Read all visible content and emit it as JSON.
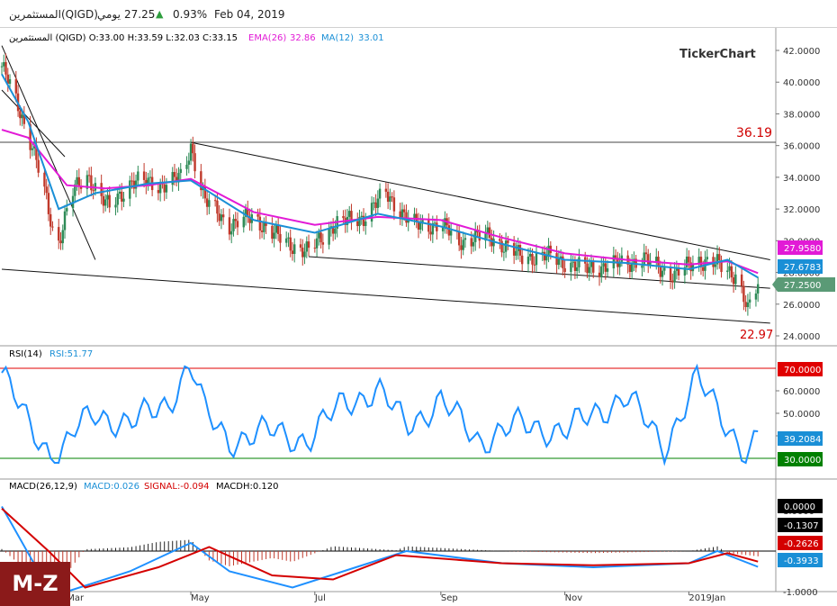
{
  "header": {
    "name": "المستثمرين",
    "symbol": "(QIGD)",
    "period": "يومي",
    "last_price": "27.25",
    "change_pct": "0.93%",
    "date": "Feb 04, 2019"
  },
  "price_panel": {
    "legend_ohlc": "المستثمرين (QIGD) O:33.00 H:33.59 L:32.03 C:33.15",
    "ema_label": "EMA(26)",
    "ema_value": "32.86",
    "ma_label": "MA(12)",
    "ma_value": "33.01",
    "watermark": "TickerChart",
    "y_ticks": [
      "42.0000",
      "40.0000",
      "38.0000",
      "36.0000",
      "34.0000",
      "32.0000",
      "30.0000",
      "28.0000",
      "26.0000",
      "24.0000"
    ],
    "marker_high": "36.19",
    "marker_low": "22.97",
    "tag_ema": "27.9580",
    "tag_ma": "27.6783",
    "tag_close": "27.2500"
  },
  "rsi_panel": {
    "label": "RSI(14)",
    "value_label": "RSI:51.77",
    "y_ticks": [
      "60.0000",
      "50.0000",
      "40.0000"
    ],
    "upper_level": "70.0000",
    "lower_level": "30.0000",
    "current": "39.2084"
  },
  "macd_panel": {
    "label": "MACD(26,12,9)",
    "macd_label": "MACD:0.026",
    "signal_label": "SIGNAL:-0.094",
    "macdh_label": "MACDH:0.120",
    "y_ticks": [
      "1.0000",
      "-1.0000"
    ],
    "tag_zero": "0.0000",
    "tag_hist": "-0.1307",
    "tag_signal": "-0.2626",
    "tag_macd": "-0.3933"
  },
  "x_axis_labels": [
    "Mar",
    "May",
    "Jul",
    "Sep",
    "Nov",
    "2019Jan"
  ],
  "badge": "M-Z",
  "colors": {
    "up": "#2e8b57",
    "down": "#c0392b",
    "ema": "#e21ad6",
    "ma": "#1a8fd6",
    "rsi": "#1e90ff",
    "macd": "#1e90ff",
    "signal": "#d40000",
    "level_high": "#e00000",
    "level_low": "#008000"
  },
  "chart_data": {
    "type": "candlestick",
    "symbol": "QIGD",
    "x_range": [
      "2018-01-28",
      "2019-02-04"
    ],
    "price_ylim": [
      24,
      42
    ],
    "price_points": [
      {
        "d": "2018-01-28",
        "c": 41.0
      },
      {
        "d": "2018-02-05",
        "c": 38.5
      },
      {
        "d": "2018-02-12",
        "c": 36.0
      },
      {
        "d": "2018-02-18",
        "c": 33.0
      },
      {
        "d": "2018-02-24",
        "c": 29.5
      },
      {
        "d": "2018-03-03",
        "c": 33.0
      },
      {
        "d": "2018-03-12",
        "c": 34.0
      },
      {
        "d": "2018-03-22",
        "c": 32.0
      },
      {
        "d": "2018-04-02",
        "c": 33.8
      },
      {
        "d": "2018-04-15",
        "c": 33.5
      },
      {
        "d": "2018-04-27",
        "c": 34.0
      },
      {
        "d": "2018-05-01",
        "c": 36.0
      },
      {
        "d": "2018-05-08",
        "c": 32.5
      },
      {
        "d": "2018-05-20",
        "c": 31.0
      },
      {
        "d": "2018-06-01",
        "c": 31.5
      },
      {
        "d": "2018-06-15",
        "c": 30.0
      },
      {
        "d": "2018-06-28",
        "c": 29.3
      },
      {
        "d": "2018-07-10",
        "c": 31.0
      },
      {
        "d": "2018-07-25",
        "c": 31.5
      },
      {
        "d": "2018-08-05",
        "c": 33.0
      },
      {
        "d": "2018-08-18",
        "c": 31.0
      },
      {
        "d": "2018-09-01",
        "c": 31.0
      },
      {
        "d": "2018-09-10",
        "c": 30.0
      },
      {
        "d": "2018-09-25",
        "c": 30.3
      },
      {
        "d": "2018-10-10",
        "c": 29.0
      },
      {
        "d": "2018-10-25",
        "c": 29.0
      },
      {
        "d": "2018-11-10",
        "c": 28.2
      },
      {
        "d": "2018-11-25",
        "c": 28.5
      },
      {
        "d": "2018-12-10",
        "c": 28.8
      },
      {
        "d": "2018-12-25",
        "c": 27.8
      },
      {
        "d": "2019-01-05",
        "c": 28.8
      },
      {
        "d": "2019-01-15",
        "c": 28.5
      },
      {
        "d": "2019-01-25",
        "c": 27.8
      },
      {
        "d": "2019-01-30",
        "c": 25.5
      },
      {
        "d": "2019-02-04",
        "c": 27.25
      }
    ],
    "ema26_points": [
      {
        "d": "2018-01-28",
        "v": 37.0
      },
      {
        "d": "2018-02-10",
        "v": 36.5
      },
      {
        "d": "2018-03-01",
        "v": 33.5
      },
      {
        "d": "2018-03-20",
        "v": 33.3
      },
      {
        "d": "2018-04-10",
        "v": 33.5
      },
      {
        "d": "2018-05-01",
        "v": 33.9
      },
      {
        "d": "2018-06-01",
        "v": 31.8
      },
      {
        "d": "2018-07-01",
        "v": 31.0
      },
      {
        "d": "2018-08-01",
        "v": 31.5
      },
      {
        "d": "2018-09-01",
        "v": 31.3
      },
      {
        "d": "2018-10-01",
        "v": 30.2
      },
      {
        "d": "2018-11-01",
        "v": 29.2
      },
      {
        "d": "2018-12-01",
        "v": 28.8
      },
      {
        "d": "2019-01-01",
        "v": 28.5
      },
      {
        "d": "2019-01-20",
        "v": 28.7
      },
      {
        "d": "2019-02-04",
        "v": 27.958
      }
    ],
    "ma12_points": [
      {
        "d": "2018-01-28",
        "v": 40.5
      },
      {
        "d": "2018-02-10",
        "v": 37.5
      },
      {
        "d": "2018-02-25",
        "v": 32.0
      },
      {
        "d": "2018-03-15",
        "v": 33.0
      },
      {
        "d": "2018-04-10",
        "v": 33.6
      },
      {
        "d": "2018-05-01",
        "v": 33.8
      },
      {
        "d": "2018-06-01",
        "v": 31.3
      },
      {
        "d": "2018-07-01",
        "v": 30.5
      },
      {
        "d": "2018-08-01",
        "v": 31.7
      },
      {
        "d": "2018-09-01",
        "v": 30.9
      },
      {
        "d": "2018-10-01",
        "v": 29.8
      },
      {
        "d": "2018-11-01",
        "v": 28.8
      },
      {
        "d": "2018-12-01",
        "v": 28.6
      },
      {
        "d": "2019-01-01",
        "v": 28.2
      },
      {
        "d": "2019-01-20",
        "v": 28.8
      },
      {
        "d": "2019-02-04",
        "v": 27.678
      }
    ],
    "horizontal_level": 36.19,
    "low_marker": 22.97,
    "trendlines": [
      {
        "from": {
          "d": "2018-01-28",
          "v": 42.3
        },
        "to": {
          "d": "2018-03-15",
          "v": 28.8
        }
      },
      {
        "from": {
          "d": "2018-01-28",
          "v": 39.5
        },
        "to": {
          "d": "2018-02-28",
          "v": 35.3
        }
      },
      {
        "from": {
          "d": "2018-05-01",
          "v": 36.2
        },
        "to": {
          "d": "2019-02-10",
          "v": 28.8
        }
      },
      {
        "from": {
          "d": "2018-06-28",
          "v": 29.0
        },
        "to": {
          "d": "2019-02-10",
          "v": 27.0
        }
      },
      {
        "from": {
          "d": "2018-01-28",
          "v": 28.2
        },
        "to": {
          "d": "2019-02-10",
          "v": 24.8
        }
      }
    ],
    "rsi_ylim": [
      27,
      73
    ],
    "rsi_levels": [
      70,
      30
    ],
    "rsi_points": [
      {
        "d": "2018-01-28",
        "v": 68
      },
      {
        "d": "2018-02-10",
        "v": 45
      },
      {
        "d": "2018-02-24",
        "v": 29
      },
      {
        "d": "2018-03-05",
        "v": 42
      },
      {
        "d": "2018-03-15",
        "v": 50
      },
      {
        "d": "2018-04-01",
        "v": 45
      },
      {
        "d": "2018-04-20",
        "v": 55
      },
      {
        "d": "2018-05-01",
        "v": 72
      },
      {
        "d": "2018-05-08",
        "v": 50
      },
      {
        "d": "2018-05-20",
        "v": 38
      },
      {
        "d": "2018-06-10",
        "v": 42
      },
      {
        "d": "2018-06-28",
        "v": 38
      },
      {
        "d": "2018-07-15",
        "v": 55
      },
      {
        "d": "2018-08-01",
        "v": 60
      },
      {
        "d": "2018-08-15",
        "v": 45
      },
      {
        "d": "2018-09-01",
        "v": 55
      },
      {
        "d": "2018-09-20",
        "v": 38
      },
      {
        "d": "2018-10-10",
        "v": 45
      },
      {
        "d": "2018-11-01",
        "v": 42
      },
      {
        "d": "2018-12-01",
        "v": 58
      },
      {
        "d": "2018-12-20",
        "v": 35
      },
      {
        "d": "2019-01-05",
        "v": 65
      },
      {
        "d": "2019-01-20",
        "v": 45
      },
      {
        "d": "2019-01-30",
        "v": 31
      },
      {
        "d": "2019-02-04",
        "v": 39.2
      }
    ],
    "macd_ylim": [
      -1.3,
      1.1
    ],
    "macd_points": [
      {
        "d": "2018-01-28",
        "v": 1.1
      },
      {
        "d": "2018-02-15",
        "v": -0.5
      },
      {
        "d": "2018-03-01",
        "v": -1.0
      },
      {
        "d": "2018-04-01",
        "v": -0.5
      },
      {
        "d": "2018-05-01",
        "v": 0.2
      },
      {
        "d": "2018-05-20",
        "v": -0.5
      },
      {
        "d": "2018-06-20",
        "v": -0.9
      },
      {
        "d": "2018-07-15",
        "v": -0.5
      },
      {
        "d": "2018-08-15",
        "v": 0.0
      },
      {
        "d": "2018-10-01",
        "v": -0.3
      },
      {
        "d": "2018-11-15",
        "v": -0.4
      },
      {
        "d": "2019-01-01",
        "v": -0.3
      },
      {
        "d": "2019-01-15",
        "v": 0.0
      },
      {
        "d": "2019-02-04",
        "v": -0.39
      }
    ],
    "signal_points": [
      {
        "d": "2018-01-28",
        "v": 1.05
      },
      {
        "d": "2018-02-20",
        "v": 0.0
      },
      {
        "d": "2018-03-10",
        "v": -0.9
      },
      {
        "d": "2018-04-15",
        "v": -0.4
      },
      {
        "d": "2018-05-10",
        "v": 0.1
      },
      {
        "d": "2018-06-10",
        "v": -0.6
      },
      {
        "d": "2018-07-10",
        "v": -0.7
      },
      {
        "d": "2018-08-10",
        "v": -0.1
      },
      {
        "d": "2018-10-01",
        "v": -0.3
      },
      {
        "d": "2018-11-15",
        "v": -0.35
      },
      {
        "d": "2019-01-01",
        "v": -0.3
      },
      {
        "d": "2019-01-20",
        "v": -0.05
      },
      {
        "d": "2019-02-04",
        "v": -0.26
      }
    ]
  }
}
